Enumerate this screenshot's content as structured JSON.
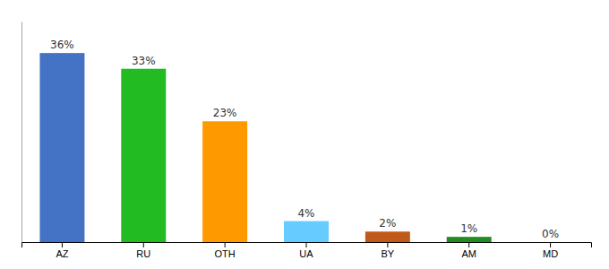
{
  "chart_data": {
    "type": "bar",
    "categories": [
      "AZ",
      "RU",
      "OTH",
      "UA",
      "BY",
      "AM",
      "MD"
    ],
    "values": [
      36,
      33,
      23,
      4,
      2,
      1,
      0
    ],
    "value_labels": [
      "36%",
      "33%",
      "23%",
      "4%",
      "2%",
      "1%",
      "0%"
    ],
    "colors": [
      "#4472c4",
      "#22bb22",
      "#ff9900",
      "#66ccff",
      "#c05a1a",
      "#228b22",
      "#c0c0c0"
    ],
    "ylim": [
      0,
      42
    ],
    "data_labels": true,
    "tick_labels": "x",
    "grid": false
  }
}
